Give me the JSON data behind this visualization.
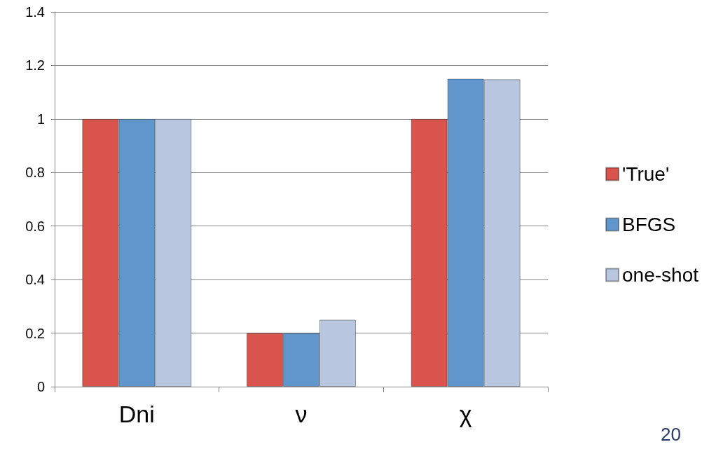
{
  "chart_data": {
    "type": "bar",
    "categories": [
      "Dni",
      "ν",
      "χ"
    ],
    "series": [
      {
        "name": "'True'",
        "color": "#d9544d",
        "values": [
          1,
          0.2,
          1
        ]
      },
      {
        "name": "BFGS",
        "color": "#6096cc",
        "values": [
          1,
          0.2,
          1.15
        ]
      },
      {
        "name": "one-shot",
        "color": "#b8c6e0",
        "values": [
          1,
          0.25,
          1.148
        ]
      }
    ],
    "ylim": [
      0,
      1.4
    ],
    "yticks": [
      0,
      0.2,
      0.4,
      0.6,
      0.8,
      1,
      1.2,
      1.4
    ],
    "grid": "y",
    "legend": "right",
    "annotations": [
      "20"
    ]
  }
}
